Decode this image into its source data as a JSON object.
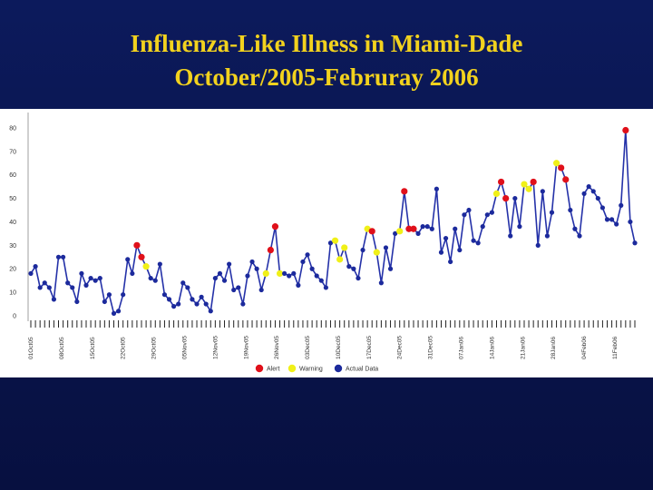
{
  "slide": {
    "title_line1": "Influenza-Like Illness in Miami-Dade",
    "title_line2": "October/2005-Februray 2006"
  },
  "colors": {
    "background": "#0a1650",
    "title": "#f2d21e",
    "line": "#2431a8",
    "actual": "#1c2a9c",
    "alert": "#e0101a",
    "warning": "#f0f018"
  },
  "chart_data": {
    "type": "line",
    "title": "",
    "xlabel": "",
    "ylabel": "",
    "ylim": [
      0,
      85
    ],
    "yticks": [
      0,
      10,
      20,
      30,
      40,
      50,
      60,
      70,
      80
    ],
    "grid": false,
    "legend_position": "bottom-center",
    "x_tick_labels": [
      "01Oct05",
      "08Oct05",
      "15Oct05",
      "22Oct05",
      "29Oct05",
      "05Nov05",
      "12Nov05",
      "19Nov05",
      "26Nov05",
      "03Dec05",
      "10Dec05",
      "17Dec05",
      "24Dec05",
      "31Dec05",
      "07Jan06",
      "14Jan06",
      "21Jan06",
      "28Jan06",
      "04Feb06",
      "11Feb06"
    ],
    "legend": [
      {
        "status": "alert",
        "label": "Alert"
      },
      {
        "status": "warning",
        "label": "Warning"
      },
      {
        "status": "actual",
        "label": "Actual Data"
      }
    ],
    "series": [
      {
        "values": [
          18,
          21,
          12,
          14,
          12,
          7,
          25,
          25,
          14,
          12,
          6,
          18,
          13,
          16,
          15,
          16,
          6,
          9,
          1,
          2,
          9,
          24,
          18,
          30,
          25,
          21,
          16,
          15,
          22,
          9,
          7,
          4,
          5,
          14,
          12,
          7,
          5,
          8,
          5,
          2,
          16,
          18,
          15,
          22,
          11,
          12,
          5,
          17,
          23,
          20,
          11,
          18,
          28,
          38,
          18,
          18,
          17,
          18,
          13,
          23,
          26,
          20,
          17,
          15,
          12,
          31,
          32,
          24,
          29,
          21,
          20,
          16,
          28,
          37,
          36,
          27,
          14,
          29,
          20,
          35,
          36,
          53,
          37,
          37,
          35,
          38,
          38,
          37,
          54,
          27,
          33,
          23,
          37,
          28,
          43,
          45,
          32,
          31,
          38,
          43,
          44,
          52,
          57,
          50,
          34,
          50,
          38,
          56,
          54,
          57,
          30,
          53,
          34,
          44,
          65,
          63,
          58,
          45,
          37,
          34,
          52,
          55,
          53,
          50,
          46,
          41,
          41,
          39,
          47,
          79,
          40,
          31
        ],
        "status": [
          "a",
          "a",
          "a",
          "a",
          "a",
          "a",
          "a",
          "a",
          "a",
          "a",
          "a",
          "a",
          "a",
          "a",
          "a",
          "a",
          "a",
          "a",
          "a",
          "a",
          "a",
          "a",
          "a",
          "r",
          "r",
          "w",
          "a",
          "a",
          "a",
          "a",
          "a",
          "a",
          "a",
          "a",
          "a",
          "a",
          "a",
          "a",
          "a",
          "a",
          "a",
          "a",
          "a",
          "a",
          "a",
          "a",
          "a",
          "a",
          "a",
          "a",
          "a",
          "w",
          "r",
          "r",
          "w",
          "a",
          "a",
          "a",
          "a",
          "a",
          "a",
          "a",
          "a",
          "a",
          "a",
          "a",
          "w",
          "w",
          "w",
          "a",
          "a",
          "a",
          "a",
          "w",
          "r",
          "w",
          "a",
          "a",
          "a",
          "a",
          "w",
          "r",
          "r",
          "r",
          "a",
          "a",
          "a",
          "a",
          "a",
          "a",
          "a",
          "a",
          "a",
          "a",
          "a",
          "a",
          "a",
          "a",
          "a",
          "a",
          "a",
          "w",
          "r",
          "r",
          "a",
          "a",
          "a",
          "w",
          "w",
          "r",
          "a",
          "a",
          "a",
          "a",
          "w",
          "r",
          "r",
          "a",
          "a",
          "a",
          "a",
          "a",
          "a",
          "a",
          "a",
          "a",
          "a",
          "a",
          "a",
          "r",
          "a",
          "a"
        ]
      }
    ]
  }
}
